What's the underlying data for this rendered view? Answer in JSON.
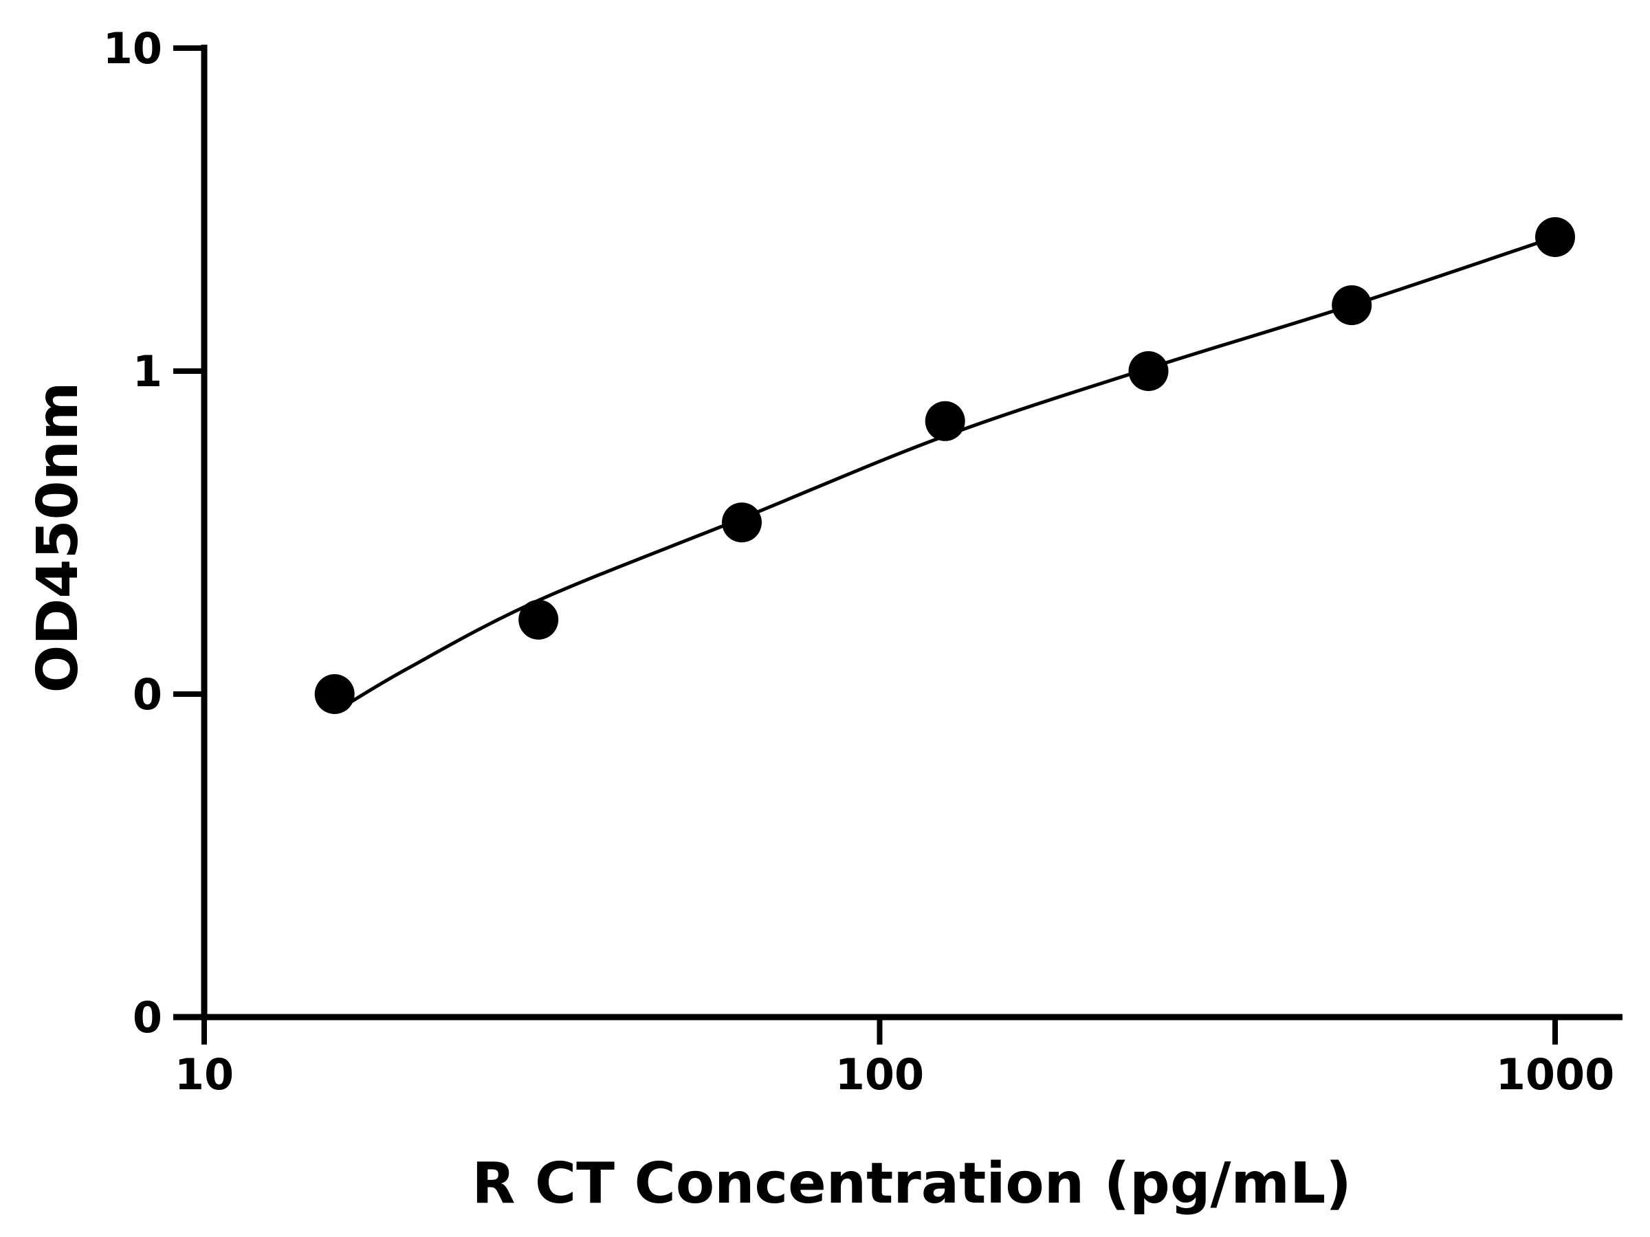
{
  "chart_data": {
    "type": "scatter",
    "title": "",
    "xlabel": "R CT Concentration (pg/mL)",
    "ylabel": "OD450nm",
    "x_scale": "log",
    "xlim": [
      10,
      1250
    ],
    "x_ticks": [
      {
        "value": 10,
        "label": "10"
      },
      {
        "value": 100,
        "label": "100"
      },
      {
        "value": 1000,
        "label": "1000"
      }
    ],
    "y_ticks": [
      {
        "level": 0,
        "label": "0"
      },
      {
        "level": 1,
        "label": "0"
      },
      {
        "level": 2,
        "label": "1"
      },
      {
        "level": 3,
        "label": "10"
      }
    ],
    "grid": false,
    "legend": "none",
    "color": "#000000",
    "series": [
      {
        "marker": "circle",
        "points": [
          {
            "x": 15.6,
            "y": 0.1
          },
          {
            "x": 31.25,
            "y": 0.17
          },
          {
            "x": 62.5,
            "y": 0.34
          },
          {
            "x": 125,
            "y": 0.7
          },
          {
            "x": 250,
            "y": 1.0
          },
          {
            "x": 500,
            "y": 1.6
          },
          {
            "x": 1000,
            "y": 2.6
          }
        ]
      }
    ],
    "fit_curve": {
      "style": "line",
      "points": [
        {
          "x": 15.6,
          "y": 0.088
        },
        {
          "x": 20,
          "y": 0.12
        },
        {
          "x": 31.25,
          "y": 0.195
        },
        {
          "x": 62.5,
          "y": 0.35
        },
        {
          "x": 125,
          "y": 0.63
        },
        {
          "x": 250,
          "y": 1.02
        },
        {
          "x": 500,
          "y": 1.6
        },
        {
          "x": 1000,
          "y": 2.6
        }
      ]
    }
  }
}
